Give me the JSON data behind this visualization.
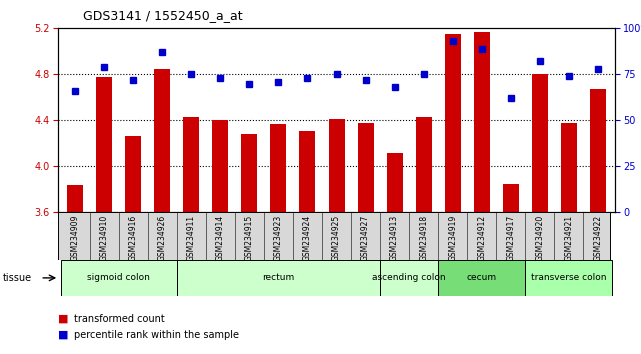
{
  "title": "GDS3141 / 1552450_a_at",
  "samples": [
    "GSM234909",
    "GSM234910",
    "GSM234916",
    "GSM234926",
    "GSM234911",
    "GSM234914",
    "GSM234915",
    "GSM234923",
    "GSM234924",
    "GSM234925",
    "GSM234927",
    "GSM234913",
    "GSM234918",
    "GSM234919",
    "GSM234912",
    "GSM234917",
    "GSM234920",
    "GSM234921",
    "GSM234922"
  ],
  "bar_values": [
    3.84,
    4.78,
    4.26,
    4.85,
    4.43,
    4.4,
    4.28,
    4.37,
    4.31,
    4.41,
    4.38,
    4.12,
    4.43,
    5.15,
    5.17,
    3.85,
    4.8,
    4.38,
    4.67
  ],
  "dot_values": [
    66,
    79,
    72,
    87,
    75,
    73,
    70,
    71,
    73,
    75,
    72,
    68,
    75,
    93,
    89,
    62,
    82,
    74,
    78
  ],
  "bar_color": "#cc0000",
  "dot_color": "#0000cc",
  "ylim_left": [
    3.6,
    5.2
  ],
  "ylim_right": [
    0,
    100
  ],
  "yticks_left": [
    3.6,
    4.0,
    4.4,
    4.8,
    5.2
  ],
  "yticks_right": [
    0,
    25,
    50,
    75,
    100
  ],
  "ytick_labels_right": [
    "0",
    "25",
    "50",
    "75",
    "100%"
  ],
  "gridlines": [
    4.0,
    4.4,
    4.8
  ],
  "tissue_groups": [
    {
      "label": "sigmoid colon",
      "start": 0,
      "end": 4,
      "color": "#ccffcc"
    },
    {
      "label": "rectum",
      "start": 4,
      "end": 11,
      "color": "#ccffcc"
    },
    {
      "label": "ascending colon",
      "start": 11,
      "end": 13,
      "color": "#ccffcc"
    },
    {
      "label": "cecum",
      "start": 13,
      "end": 16,
      "color": "#77dd77"
    },
    {
      "label": "transverse colon",
      "start": 16,
      "end": 19,
      "color": "#aaffaa"
    }
  ],
  "tissue_label": "tissue",
  "legend_bar": "transformed count",
  "legend_dot": "percentile rank within the sample",
  "bar_bottom": 3.6
}
